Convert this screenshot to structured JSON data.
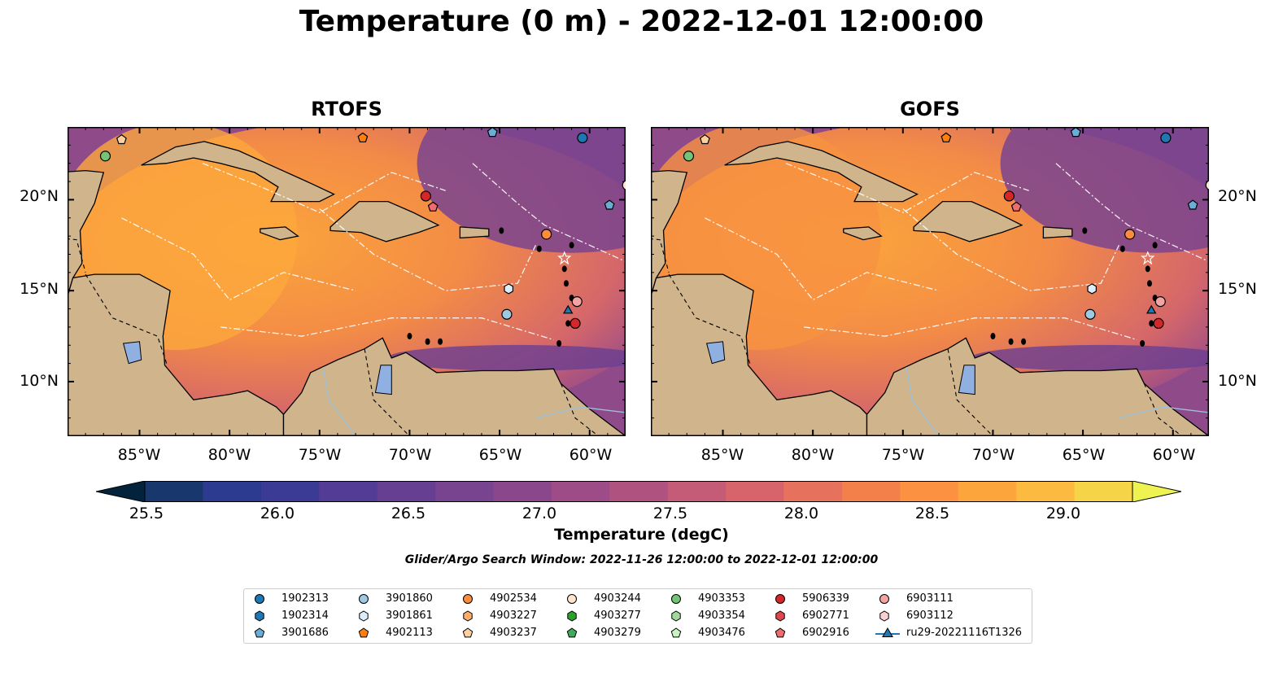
{
  "title": "Temperature (0 m) - 2022-12-01 12:00:00",
  "panels": [
    {
      "title": "RTOFS"
    },
    {
      "title": "GOFS"
    }
  ],
  "axes": {
    "lon_ticks": [
      "85°W",
      "80°W",
      "75°W",
      "70°W",
      "65°W",
      "60°W"
    ],
    "lat_ticks": [
      "20°N",
      "15°N",
      "10°N"
    ],
    "lon_range": [
      -89,
      -58
    ],
    "lat_range": [
      7,
      24
    ]
  },
  "colorbar": {
    "label": "Temperature (degC)",
    "ticks": [
      "25.5",
      "26.0",
      "26.5",
      "27.0",
      "27.5",
      "28.0",
      "28.5",
      "29.0"
    ],
    "range": [
      25.25,
      29.25
    ],
    "colors": [
      "#03233c",
      "#17376d",
      "#2c3b8f",
      "#3b3a95",
      "#523c95",
      "#663f92",
      "#78438f",
      "#8a478c",
      "#9d4c87",
      "#b05280",
      "#c45b77",
      "#d6646a",
      "#e6715c",
      "#f3804b",
      "#fb9141",
      "#fda53d",
      "#fcba40",
      "#f6d447",
      "#eef352"
    ]
  },
  "search_window": "Glider/Argo Search Window: 2022-11-26 12:00:00 to 2022-12-01 12:00:00",
  "legend": [
    {
      "label": "1902313",
      "marker": "circle",
      "color": "#1f77b4"
    },
    {
      "label": "1902314",
      "marker": "hexagon",
      "color": "#1f77b4"
    },
    {
      "label": "3901686",
      "marker": "pentagon",
      "color": "#6aaed6"
    },
    {
      "label": "3901860",
      "marker": "circle",
      "color": "#9ecae1"
    },
    {
      "label": "3901861",
      "marker": "hexagon",
      "color": "#dbeefa"
    },
    {
      "label": "4902113",
      "marker": "pentagon",
      "color": "#ff7f0e"
    },
    {
      "label": "4902534",
      "marker": "circle",
      "color": "#fd8d3c"
    },
    {
      "label": "4903227",
      "marker": "hexagon",
      "color": "#fdae6b"
    },
    {
      "label": "4903237",
      "marker": "pentagon",
      "color": "#fdd0a2"
    },
    {
      "label": "4903244",
      "marker": "circle",
      "color": "#fee6ce"
    },
    {
      "label": "4903277",
      "marker": "hexagon",
      "color": "#2ca02c"
    },
    {
      "label": "4903279",
      "marker": "pentagon",
      "color": "#41ab5d"
    },
    {
      "label": "4903353",
      "marker": "circle",
      "color": "#74c476"
    },
    {
      "label": "4903354",
      "marker": "hexagon",
      "color": "#a1d99b"
    },
    {
      "label": "4903476",
      "marker": "pentagon",
      "color": "#c7f5c0"
    },
    {
      "label": "5906339",
      "marker": "circle",
      "color": "#d62728"
    },
    {
      "label": "6902771",
      "marker": "hexagon",
      "color": "#e0474c"
    },
    {
      "label": "6902916",
      "marker": "pentagon",
      "color": "#f26b6e"
    },
    {
      "label": "6903111",
      "marker": "circle",
      "color": "#f4a3a3"
    },
    {
      "label": "6903112",
      "marker": "hexagon",
      "color": "#fbd0d0"
    },
    {
      "label": "ru29-20221116T1326",
      "marker": "triangle-line",
      "color": "#1f77b4"
    }
  ],
  "floats": [
    {
      "id": "1902313",
      "lon": -60.4,
      "lat": 23.4
    },
    {
      "id": "3901686",
      "lon": -65.4,
      "lat": 23.7
    },
    {
      "id": "3901686",
      "lon": -58.9,
      "lat": 19.7
    },
    {
      "id": "3901861",
      "lon": -64.5,
      "lat": 15.1
    },
    {
      "id": "3901860",
      "lon": -64.6,
      "lat": 13.7
    },
    {
      "id": "4902113",
      "lon": -72.6,
      "lat": 23.4
    },
    {
      "id": "4903237",
      "lon": -86.0,
      "lat": 23.3
    },
    {
      "id": "4903353",
      "lon": -86.9,
      "lat": 22.4
    },
    {
      "id": "4902534",
      "lon": -62.4,
      "lat": 18.1
    },
    {
      "id": "5906339",
      "lon": -69.1,
      "lat": 20.2
    },
    {
      "id": "6902916",
      "lon": -68.7,
      "lat": 19.6
    },
    {
      "id": "6903111",
      "lon": -60.7,
      "lat": 14.4
    },
    {
      "id": "5906339",
      "lon": -60.8,
      "lat": 13.2
    },
    {
      "id": "4903244",
      "lon": -57.9,
      "lat": 20.8
    },
    {
      "id": "ru29-20221116T1326",
      "lon": -61.2,
      "lat": 13.9
    }
  ]
}
